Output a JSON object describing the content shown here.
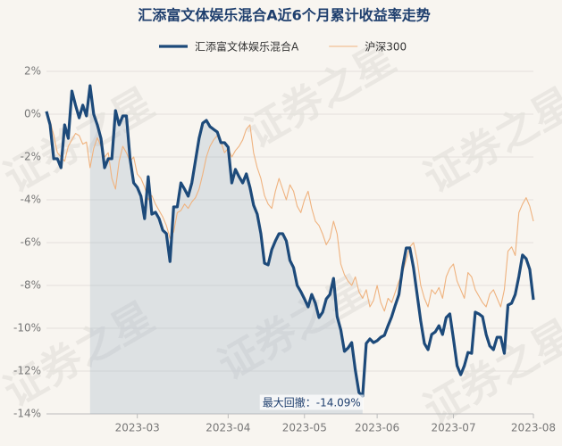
{
  "chart_data": {
    "type": "line",
    "title": "汇添富文体娱乐混合A近6个月累计收益率走势",
    "watermark": "证券之星",
    "annotation": "最大回撤：-14.09%",
    "xlim": [
      0,
      134
    ],
    "xticks": [
      {
        "value": 25,
        "label": "2023-03"
      },
      {
        "value": 50,
        "label": "2023-04"
      },
      {
        "value": 71,
        "label": "2023-05"
      },
      {
        "value": 91,
        "label": "2023-06"
      },
      {
        "value": 112,
        "label": "2023-07"
      },
      {
        "value": 134,
        "label": "2023-08"
      }
    ],
    "ylim": [
      -14,
      2
    ],
    "yticks": [
      {
        "value": 2,
        "label": "2%"
      },
      {
        "value": 0,
        "label": "0%"
      },
      {
        "value": -2,
        "label": "-2%"
      },
      {
        "value": -4,
        "label": "-4%"
      },
      {
        "value": -6,
        "label": "-6%"
      },
      {
        "value": -8,
        "label": "-8%"
      },
      {
        "value": -10,
        "label": "-10%"
      },
      {
        "value": -12,
        "label": "-12%"
      },
      {
        "value": -14,
        "label": "-14%"
      }
    ],
    "grid": true,
    "series": [
      {
        "name": "汇添富文体娱乐混合A",
        "color": "#1d4a7a",
        "width": 3.2,
        "values": [
          0.13,
          -0.5,
          -2.08,
          -2.08,
          -2.5,
          -0.5,
          -1.13,
          1.08,
          0.42,
          -0.17,
          0.42,
          -0.08,
          1.33,
          0,
          -0.5,
          -1.13,
          -2.5,
          -2.08,
          -2.08,
          0.17,
          -0.5,
          -0.08,
          -0.08,
          -2.08,
          -3.21,
          -3.42,
          -3.83,
          -4.88,
          -2.92,
          -4.67,
          -4.58,
          -4.88,
          -5.42,
          -5.58,
          -6.88,
          -4.33,
          -4.33,
          -3.21,
          -3.5,
          -3.83,
          -3.21,
          -2.17,
          -1.13,
          -0.42,
          -0.29,
          -0.58,
          -0.71,
          -0.83,
          -1.33,
          -1.33,
          -1.54,
          -3.21,
          -2.58,
          -2.92,
          -3.21,
          -2.79,
          -3.42,
          -4.25,
          -4.67,
          -5.58,
          -6.96,
          -7.04,
          -6.33,
          -5.92,
          -5.58,
          -5.58,
          -5.92,
          -6.83,
          -7.17,
          -8,
          -8.29,
          -8.63,
          -9,
          -8.42,
          -8.83,
          -9.5,
          -9.25,
          -8.63,
          -8.42,
          -7.67,
          -9.46,
          -10.08,
          -11.08,
          -10.92,
          -10.67,
          -11.96,
          -13,
          -13.17,
          -10.71,
          -10.5,
          -10.67,
          -10.58,
          -10.42,
          -10.33,
          -9.88,
          -9.46,
          -8.92,
          -8.42,
          -7.17,
          -6.25,
          -6.25,
          -7.17,
          -8.42,
          -9.67,
          -10.71,
          -11,
          -10.29,
          -10.17,
          -9.88,
          -10.29,
          -9.5,
          -9.33,
          -10.5,
          -11.75,
          -12.17,
          -11.75,
          -11.13,
          -11.17,
          -9.25,
          -9.33,
          -9.46,
          -10.29,
          -10.83,
          -11,
          -10.42,
          -10.42,
          -11.17,
          -8.92,
          -8.83,
          -8.42,
          -7.58,
          -6.58,
          -6.75,
          -7.25,
          -8.67
        ]
      },
      {
        "name": "沪深300",
        "color": "#efb27e",
        "width": 1.1,
        "values": [
          0,
          -0.3,
          -1,
          -1.8,
          -2,
          -2.2,
          -1.5,
          -1.2,
          -0.9,
          -1,
          -1.4,
          -1.3,
          -2.5,
          -1.6,
          -1.1,
          -1.5,
          -2,
          -1.8,
          -3,
          -3.5,
          -2.2,
          -1.5,
          -1.8,
          -2.2,
          -2,
          -2.8,
          -3,
          -3.4,
          -4,
          -3.8,
          -4.2,
          -4.5,
          -4.8,
          -5.2,
          -5.8,
          -5.5,
          -4.6,
          -4.5,
          -4.2,
          -4.4,
          -4.1,
          -3.9,
          -3.5,
          -2.8,
          -2,
          -1.5,
          -1.2,
          -1,
          -1.3,
          -1.8,
          -1.6,
          -2,
          -1.7,
          -1.5,
          -1.2,
          -0.7,
          -0.5,
          -1.8,
          -2.5,
          -3,
          -3.8,
          -4.2,
          -4.4,
          -3.6,
          -3,
          -3.5,
          -4,
          -3.3,
          -3.6,
          -4.3,
          -4.6,
          -4,
          -3.6,
          -4.4,
          -5,
          -5.2,
          -5.6,
          -6.1,
          -5.8,
          -5,
          -5.6,
          -7,
          -7.5,
          -7.8,
          -8,
          -7.6,
          -8.3,
          -8.6,
          -8.2,
          -9,
          -8.7,
          -8,
          -8.8,
          -9.2,
          -8.6,
          -8.8,
          -8.3,
          -7.8,
          -7.4,
          -6.8,
          -6.2,
          -6,
          -6.8,
          -8,
          -8.6,
          -9,
          -8.2,
          -8.4,
          -8.1,
          -8.6,
          -7.6,
          -7.2,
          -7,
          -7.8,
          -8.2,
          -8.6,
          -7.4,
          -7.6,
          -8.2,
          -8.5,
          -8.8,
          -9,
          -8.4,
          -8.2,
          -8.6,
          -9,
          -8.2,
          -6.4,
          -6.2,
          -6.6,
          -4.6,
          -4.2,
          -3.9,
          -4.3,
          -5
        ]
      }
    ]
  }
}
